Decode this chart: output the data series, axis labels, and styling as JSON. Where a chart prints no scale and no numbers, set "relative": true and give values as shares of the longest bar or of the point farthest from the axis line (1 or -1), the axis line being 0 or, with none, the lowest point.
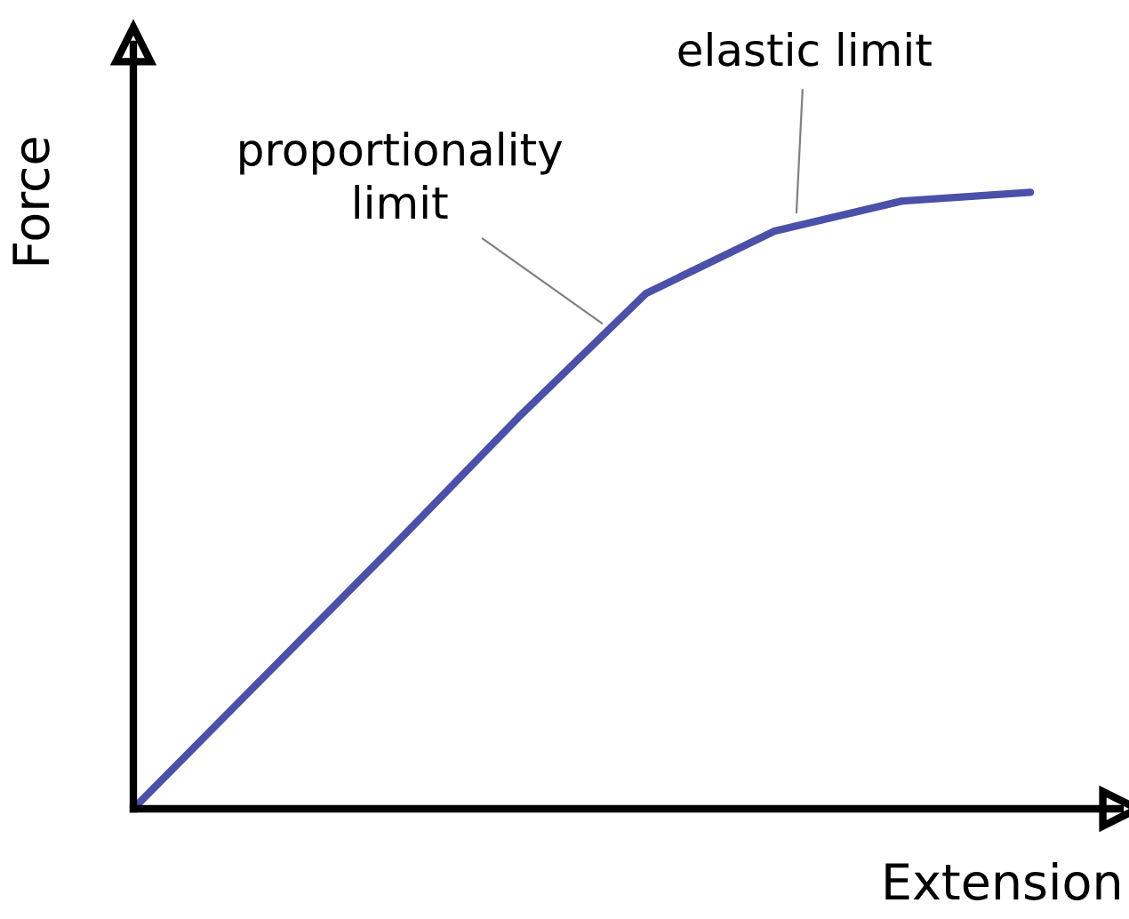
{
  "chart_data": {
    "type": "line",
    "relative": true,
    "xlabel": "Extension",
    "ylabel": "Force",
    "categories": [
      null,
      null,
      null,
      null,
      null,
      null,
      null,
      null
    ],
    "series": [
      {
        "color": "#4b50a8",
        "values": [
          0,
          0.21,
          0.42,
          0.634,
          0.836,
          0.937,
          0.986,
          1.0
        ]
      }
    ],
    "annotations": [
      "proportionality\nlimit",
      "elastic limit"
    ],
    "marker": "none",
    "line_style": "solid"
  }
}
